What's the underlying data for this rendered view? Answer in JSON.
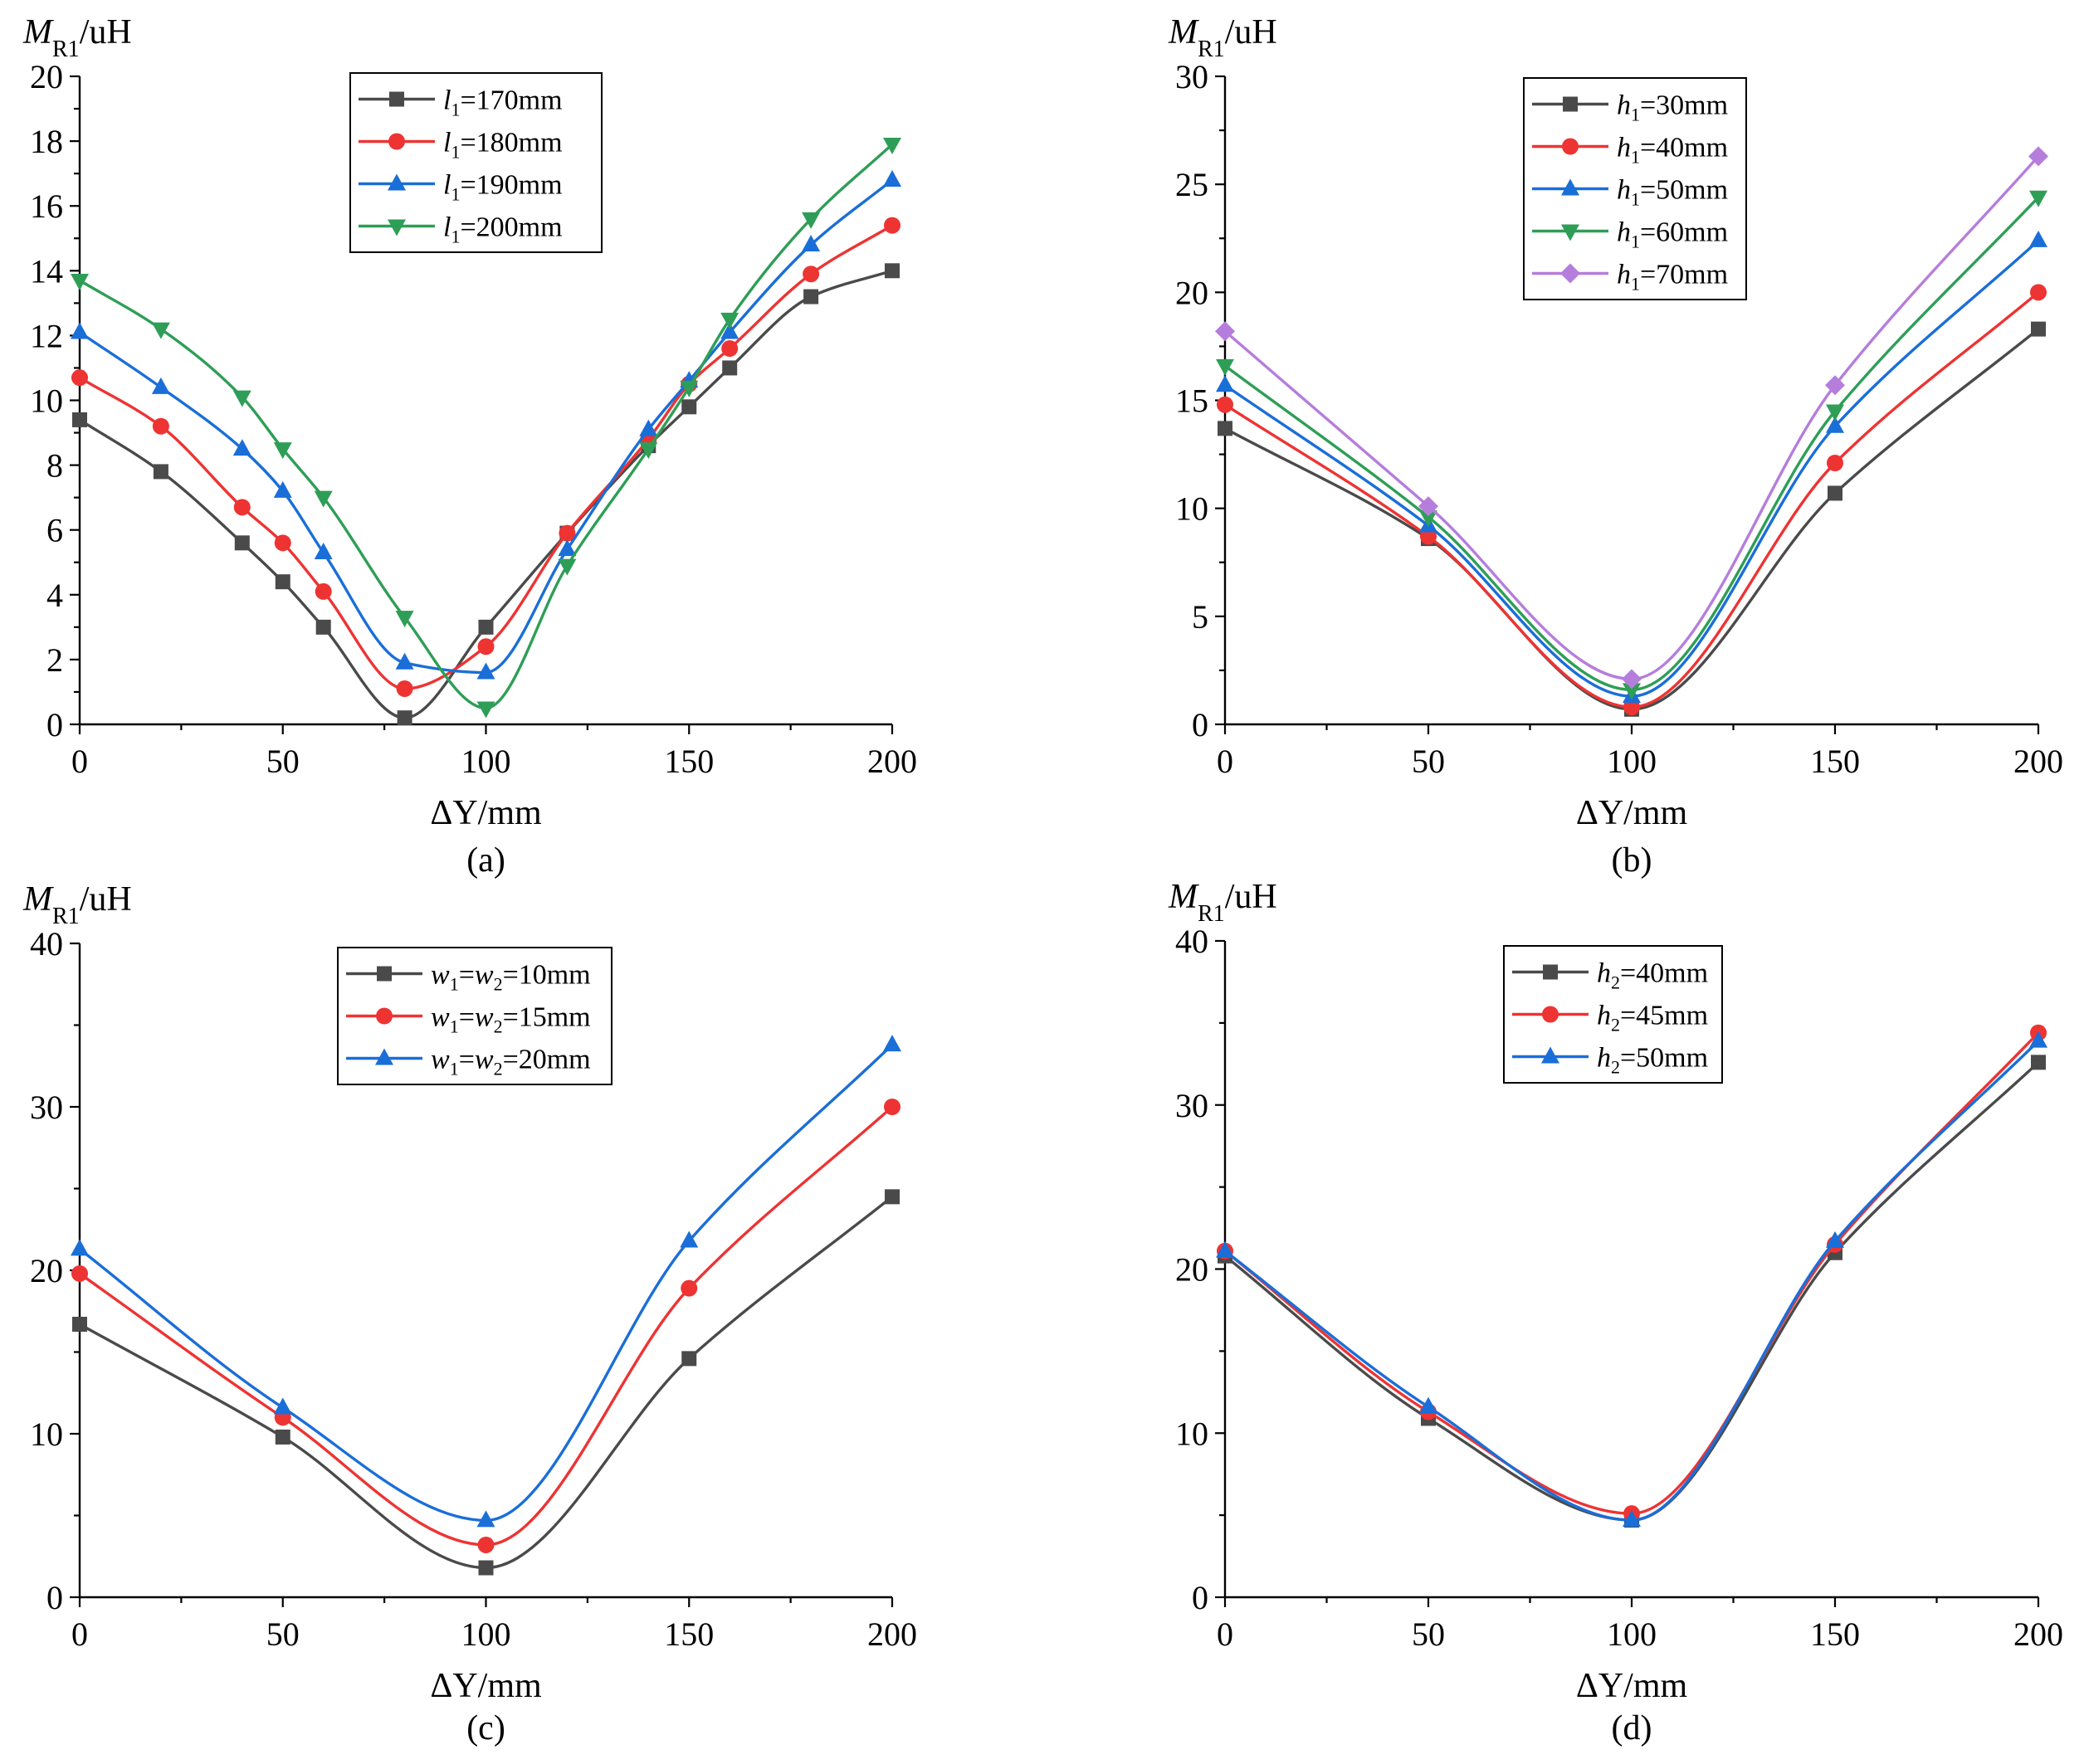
{
  "chart_data": [
    {
      "type": "line",
      "panel": "a",
      "caption": "(a)",
      "ylabel": {
        "italic": "M",
        "sub": "R1",
        "unit": "/uH"
      },
      "xlabel": "ΔY/mm",
      "xlim": [
        0,
        200
      ],
      "ylim": [
        0,
        20
      ],
      "xticks": [
        0,
        50,
        100,
        150,
        200
      ],
      "yticks": [
        0,
        2,
        4,
        6,
        8,
        10,
        12,
        14,
        16,
        18,
        20
      ],
      "legend_position": "top-center",
      "series": [
        {
          "name": "l1=170mm",
          "legend": {
            "var": "l",
            "sub": "1",
            "rest": "=170mm"
          },
          "color": "#4a4a4a",
          "marker": "square",
          "x": [
            0,
            20,
            40,
            50,
            60,
            80,
            100,
            120,
            140,
            150,
            160,
            180,
            200
          ],
          "y": [
            9.4,
            7.8,
            5.6,
            4.4,
            3.0,
            0.2,
            3.0,
            5.9,
            8.6,
            9.8,
            11.0,
            13.2,
            14.0
          ]
        },
        {
          "name": "l1=180mm",
          "legend": {
            "var": "l",
            "sub": "1",
            "rest": "=180mm"
          },
          "color": "#ee3333",
          "marker": "circle",
          "x": [
            0,
            20,
            40,
            50,
            60,
            80,
            100,
            120,
            140,
            150,
            160,
            180,
            200
          ],
          "y": [
            10.7,
            9.2,
            6.7,
            5.6,
            4.1,
            1.1,
            2.4,
            5.9,
            8.8,
            10.5,
            11.6,
            13.9,
            15.4
          ]
        },
        {
          "name": "l1=190mm",
          "legend": {
            "var": "l",
            "sub": "1",
            "rest": "=190mm"
          },
          "color": "#1a6ed8",
          "marker": "triangle-up",
          "x": [
            0,
            20,
            40,
            50,
            60,
            80,
            100,
            120,
            140,
            150,
            160,
            180,
            200
          ],
          "y": [
            12.1,
            10.4,
            8.5,
            7.2,
            5.3,
            1.9,
            1.6,
            5.4,
            9.1,
            10.6,
            12.1,
            14.8,
            16.8
          ]
        },
        {
          "name": "l1=200mm",
          "legend": {
            "var": "l",
            "sub": "1",
            "rest": "=200mm"
          },
          "color": "#2e9e56",
          "marker": "triangle-down",
          "x": [
            0,
            20,
            40,
            50,
            60,
            80,
            100,
            120,
            140,
            150,
            160,
            180,
            200
          ],
          "y": [
            13.7,
            12.2,
            10.1,
            8.5,
            7.0,
            3.3,
            0.5,
            4.9,
            8.5,
            10.4,
            12.5,
            15.6,
            17.9
          ]
        }
      ]
    },
    {
      "type": "line",
      "panel": "b",
      "caption": "(b)",
      "ylabel": {
        "italic": "M",
        "sub": "R1",
        "unit": "/uH"
      },
      "xlabel": "ΔY/mm",
      "xlim": [
        0,
        200
      ],
      "ylim": [
        0,
        30
      ],
      "xticks": [
        0,
        50,
        100,
        150,
        200
      ],
      "yticks": [
        0,
        5,
        10,
        15,
        20,
        25,
        30
      ],
      "legend_position": "top-center",
      "series": [
        {
          "name": "h1=30mm",
          "legend": {
            "var": "h",
            "sub": "1",
            "rest": "=30mm"
          },
          "color": "#4a4a4a",
          "marker": "square",
          "x": [
            0,
            50,
            100,
            150,
            200
          ],
          "y": [
            13.7,
            8.6,
            0.7,
            10.7,
            18.3
          ]
        },
        {
          "name": "h1=40mm",
          "legend": {
            "var": "h",
            "sub": "1",
            "rest": "=40mm"
          },
          "color": "#ee3333",
          "marker": "circle",
          "x": [
            0,
            50,
            100,
            150,
            200
          ],
          "y": [
            14.8,
            8.7,
            0.8,
            12.1,
            20.0
          ]
        },
        {
          "name": "h1=50mm",
          "legend": {
            "var": "h",
            "sub": "1",
            "rest": "=50mm"
          },
          "color": "#1a6ed8",
          "marker": "triangle-up",
          "x": [
            0,
            50,
            100,
            150,
            200
          ],
          "y": [
            15.7,
            9.2,
            1.3,
            13.8,
            22.4
          ]
        },
        {
          "name": "h1=60mm",
          "legend": {
            "var": "h",
            "sub": "1",
            "rest": "=60mm"
          },
          "color": "#2e9e56",
          "marker": "triangle-down",
          "x": [
            0,
            50,
            100,
            150,
            200
          ],
          "y": [
            16.6,
            9.6,
            1.6,
            14.5,
            24.4
          ]
        },
        {
          "name": "h1=70mm",
          "legend": {
            "var": "h",
            "sub": "1",
            "rest": "=70mm"
          },
          "color": "#b57ddc",
          "marker": "diamond",
          "x": [
            0,
            50,
            100,
            150,
            200
          ],
          "y": [
            18.2,
            10.1,
            2.1,
            15.7,
            26.3
          ]
        }
      ]
    },
    {
      "type": "line",
      "panel": "c",
      "caption": "(c)",
      "ylabel": {
        "italic": "M",
        "sub": "R1",
        "unit": "/uH"
      },
      "xlabel": "ΔY/mm",
      "xlim": [
        0,
        200
      ],
      "ylim": [
        0,
        40
      ],
      "xticks": [
        0,
        50,
        100,
        150,
        200
      ],
      "yticks": [
        0,
        10,
        20,
        30,
        40
      ],
      "legend_position": "top-center",
      "series": [
        {
          "name": "w1=w2=10mm",
          "legend": {
            "var": "w",
            "sub": "1",
            "mid": "=",
            "var2": "w",
            "sub2": "2",
            "rest": "=10mm"
          },
          "color": "#4a4a4a",
          "marker": "square",
          "x": [
            0,
            50,
            100,
            150,
            200
          ],
          "y": [
            16.7,
            9.8,
            1.8,
            14.6,
            24.5
          ]
        },
        {
          "name": "w1=w2=15mm",
          "legend": {
            "var": "w",
            "sub": "1",
            "mid": "=",
            "var2": "w",
            "sub2": "2",
            "rest": "=15mm"
          },
          "color": "#ee3333",
          "marker": "circle",
          "x": [
            0,
            50,
            100,
            150,
            200
          ],
          "y": [
            19.8,
            11.0,
            3.2,
            18.9,
            30.0
          ]
        },
        {
          "name": "w1=w2=20mm",
          "legend": {
            "var": "w",
            "sub": "1",
            "mid": "=",
            "var2": "w",
            "sub2": "2",
            "rest": "=20mm"
          },
          "color": "#1a6ed8",
          "marker": "triangle-up",
          "x": [
            0,
            50,
            100,
            150,
            200
          ],
          "y": [
            21.3,
            11.6,
            4.7,
            21.8,
            33.8
          ]
        }
      ]
    },
    {
      "type": "line",
      "panel": "d",
      "caption": "(d)",
      "ylabel": {
        "italic": "M",
        "sub": "R1",
        "unit": "/uH"
      },
      "xlabel": "ΔY/mm",
      "xlim": [
        0,
        200
      ],
      "ylim": [
        0,
        40
      ],
      "xticks": [
        0,
        50,
        100,
        150,
        200
      ],
      "yticks": [
        0,
        10,
        20,
        30,
        40
      ],
      "legend_position": "top-center",
      "series": [
        {
          "name": "h2=40mm",
          "legend": {
            "var": "h",
            "sub": "2",
            "rest": "=40mm"
          },
          "color": "#4a4a4a",
          "marker": "square",
          "x": [
            0,
            50,
            100,
            150,
            200
          ],
          "y": [
            20.8,
            10.9,
            4.7,
            21.0,
            32.6
          ]
        },
        {
          "name": "h2=45mm",
          "legend": {
            "var": "h",
            "sub": "2",
            "rest": "=45mm"
          },
          "color": "#ee3333",
          "marker": "circle",
          "x": [
            0,
            50,
            100,
            150,
            200
          ],
          "y": [
            21.1,
            11.3,
            5.1,
            21.5,
            34.4
          ]
        },
        {
          "name": "h2=50mm",
          "legend": {
            "var": "h",
            "sub": "2",
            "rest": "=50mm"
          },
          "color": "#1a6ed8",
          "marker": "triangle-up",
          "x": [
            0,
            50,
            100,
            150,
            200
          ],
          "y": [
            21.1,
            11.6,
            4.7,
            21.7,
            33.9
          ]
        }
      ]
    }
  ]
}
